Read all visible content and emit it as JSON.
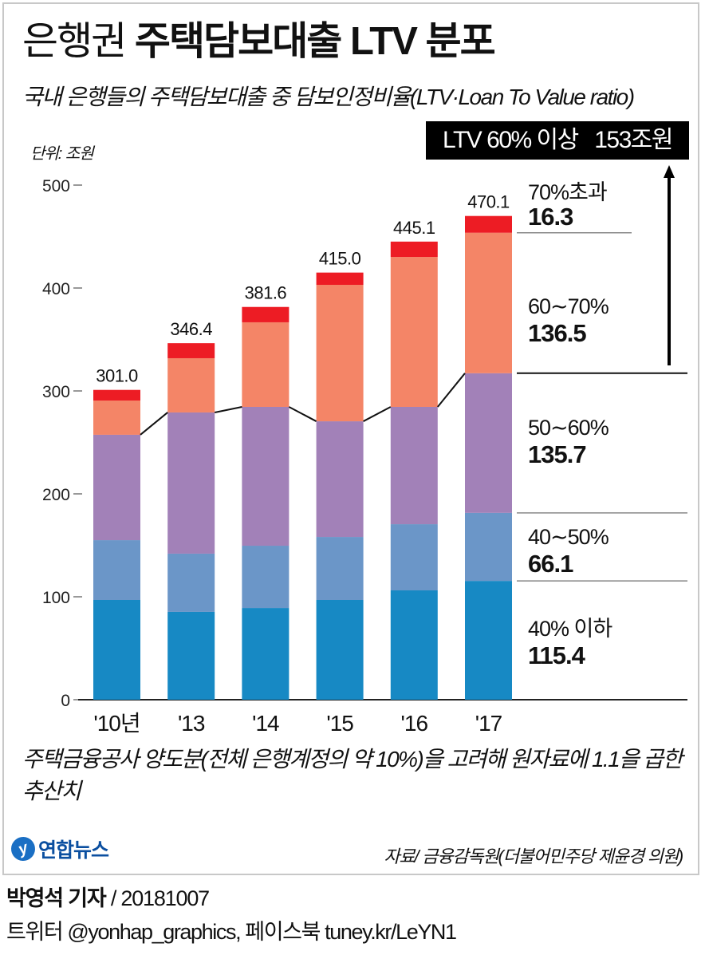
{
  "header": {
    "title_light": "은행권",
    "title_bold": "주택담보대출 LTV 분포",
    "subtitle": "국내 은행들의 주택담보대출 중 담보인정비율(LTV·Loan To Value ratio)",
    "unit_label": "단위: 조원"
  },
  "callout": {
    "label": "LTV 60% 이상",
    "value": "153조원"
  },
  "colors": {
    "le40": "#1789c4",
    "r40_50": "#6b96c8",
    "r50_60": "#a281b8",
    "r60_70": "#f48567",
    "gt70": "#ed1c24",
    "line": "#111111"
  },
  "chart_data": {
    "type": "bar",
    "stacked": true,
    "title": "은행권 주택담보대출 LTV 분포",
    "xlabel": "",
    "ylabel": "조원",
    "ylim": [
      0,
      500
    ],
    "yticks": [
      0,
      100,
      200,
      300,
      400,
      500
    ],
    "grid": false,
    "categories": [
      "'10년",
      "'13",
      "'14",
      "'15",
      "'16",
      "'17"
    ],
    "totals": [
      "301.0",
      "346.4",
      "381.6",
      "415.0",
      "445.1",
      "470.1"
    ],
    "series": [
      {
        "name": "40% 이하",
        "key": "le40",
        "values": [
          96.9,
          85.3,
          89.1,
          96.9,
          106.2,
          115.4
        ]
      },
      {
        "name": "40~50%",
        "key": "r40_50",
        "values": [
          58.1,
          56.6,
          60.5,
          61.2,
          64.3,
          66.1
        ]
      },
      {
        "name": "50~60%",
        "key": "r50_60",
        "values": [
          102.4,
          137.2,
          134.9,
          112.4,
          114.0,
          135.7
        ]
      },
      {
        "name": "60~70%",
        "key": "r60_70",
        "values": [
          33.3,
          52.7,
          82.2,
          132.6,
          145.7,
          136.5
        ]
      },
      {
        "name": "70%초과",
        "key": "gt70",
        "values": [
          10.3,
          14.6,
          14.9,
          11.9,
          14.9,
          16.3
        ]
      }
    ],
    "legend": [
      {
        "label": "70%초과",
        "value": "16.3"
      },
      {
        "label": "60∼70%",
        "value": "136.5"
      },
      {
        "label": "50∼60%",
        "value": "135.7"
      },
      {
        "label": "40∼50%",
        "value": "66.1"
      },
      {
        "label": "40% 이하",
        "value": "115.4"
      }
    ],
    "legend_placement": "right",
    "annotation": "LTV 60% 이상 153조원"
  },
  "footnote": "주택금융공사 양도분(전체 은행계정의 약 10%)을 고려해 원자료에 1.1을 곱한 추산치",
  "logo_text": "연합뉴스",
  "source": "자료/ 금융감독원(더불어민주당 제윤경 의원)",
  "credit": {
    "reporter": "박영석 기자",
    "date": " / 20181007",
    "social": "트위터 @yonhap_graphics, 페이스북 tuney.kr/LeYN1"
  }
}
